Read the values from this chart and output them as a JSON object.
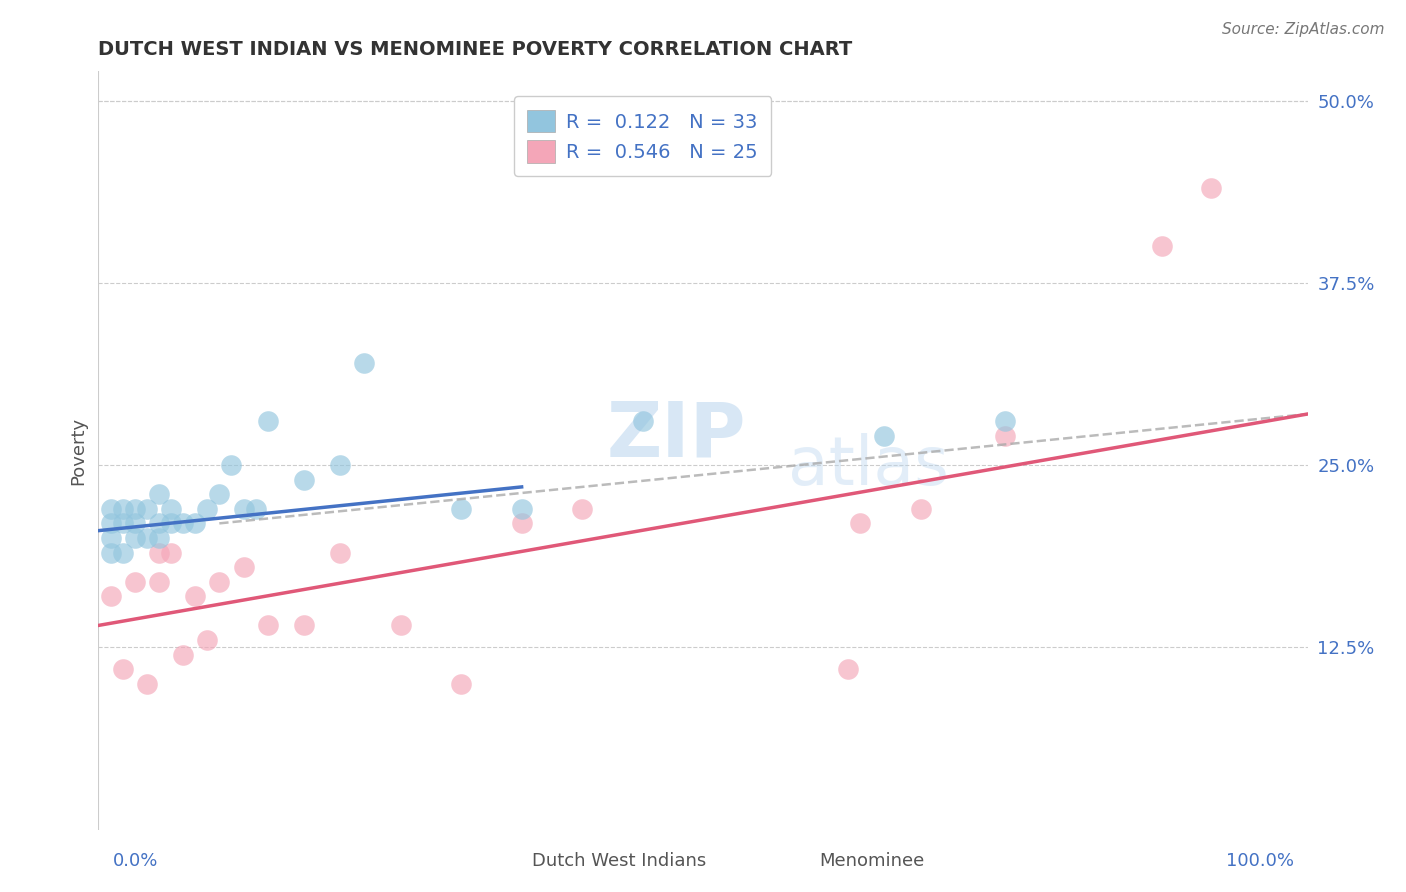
{
  "title": "DUTCH WEST INDIAN VS MENOMINEE POVERTY CORRELATION CHART",
  "source": "Source: ZipAtlas.com",
  "ylabel": "Poverty",
  "xlim": [
    0,
    100
  ],
  "ylim": [
    0,
    52
  ],
  "yticks": [
    12.5,
    25.0,
    37.5,
    50.0
  ],
  "ytick_labels": [
    "12.5%",
    "25.0%",
    "37.5%",
    "50.0%"
  ],
  "watermark_zip": "ZIP",
  "watermark_atlas": "atlas",
  "legend_r1_val": "0.122",
  "legend_n1_val": "33",
  "legend_r2_val": "0.546",
  "legend_n2_val": "25",
  "blue_color": "#92c5de",
  "pink_color": "#f4a6b8",
  "blue_line_color": "#4472c4",
  "pink_line_color": "#e05878",
  "gray_dash_color": "#aaaaaa",
  "text_blue": "#4472c4",
  "text_color": "#555555",
  "background_color": "#ffffff",
  "grid_color": "#cccccc",
  "blue_points_x": [
    1,
    1,
    1,
    1,
    2,
    2,
    2,
    3,
    3,
    3,
    4,
    4,
    5,
    5,
    5,
    6,
    6,
    7,
    8,
    9,
    10,
    11,
    12,
    13,
    14,
    17,
    20,
    22,
    30,
    35,
    45,
    65,
    75
  ],
  "blue_points_y": [
    19,
    20,
    21,
    22,
    19,
    21,
    22,
    20,
    21,
    22,
    20,
    22,
    20,
    21,
    23,
    21,
    22,
    21,
    21,
    22,
    23,
    25,
    22,
    22,
    28,
    24,
    25,
    32,
    22,
    22,
    28,
    27,
    28
  ],
  "pink_points_x": [
    1,
    2,
    3,
    4,
    5,
    5,
    6,
    7,
    8,
    9,
    10,
    12,
    14,
    17,
    20,
    25,
    30,
    35,
    40,
    62,
    63,
    68,
    75,
    88,
    92
  ],
  "pink_points_y": [
    16,
    11,
    17,
    10,
    17,
    19,
    19,
    12,
    16,
    13,
    17,
    18,
    14,
    14,
    19,
    14,
    10,
    21,
    22,
    11,
    21,
    22,
    27,
    40,
    44
  ],
  "blue_r": 0.122,
  "pink_r": 0.546,
  "blue_line_x": [
    0,
    35
  ],
  "blue_line_y_start": 20.5,
  "blue_line_y_end": 23.5,
  "pink_line_x": [
    0,
    100
  ],
  "pink_line_y_start": 14.0,
  "pink_line_y_end": 28.5,
  "gray_line_x": [
    10,
    100
  ],
  "gray_line_y_start": 21.0,
  "gray_line_y_end": 28.5
}
